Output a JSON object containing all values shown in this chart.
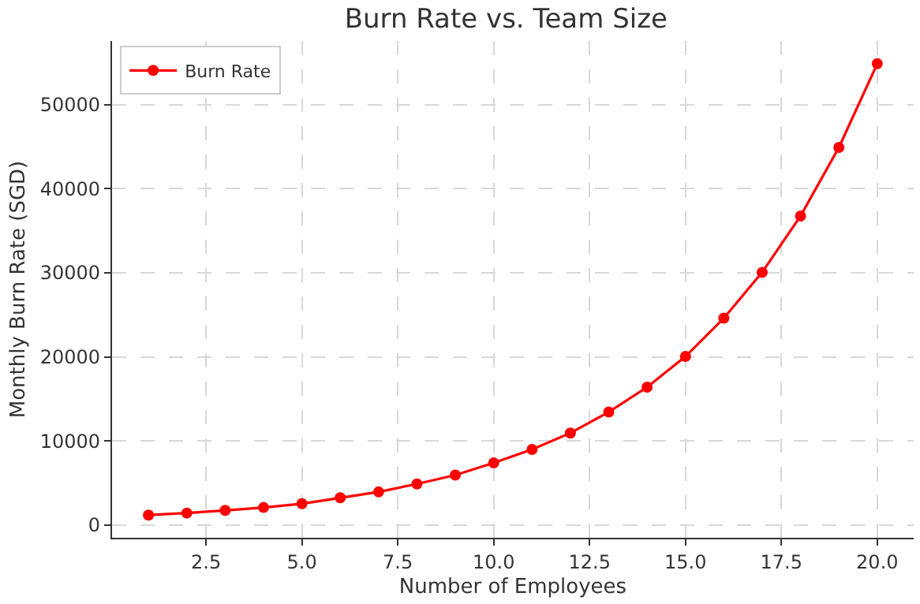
{
  "chart_data": {
    "type": "line",
    "title": "Burn Rate vs. Team Size",
    "xlabel": "Number of Employees",
    "ylabel": "Monthly Burn Rate (SGD)",
    "x": [
      1,
      2,
      3,
      4,
      5,
      6,
      7,
      8,
      9,
      10,
      11,
      12,
      13,
      14,
      15,
      16,
      17,
      18,
      19,
      20
    ],
    "series": [
      {
        "name": "Burn Rate",
        "color": "#ff0000",
        "values": [
          1200,
          1440,
          1750,
          2100,
          2550,
          3250,
          3950,
          4900,
          5950,
          7400,
          9000,
          10950,
          13450,
          16400,
          20050,
          24600,
          30050,
          36750,
          44900,
          54850
        ]
      }
    ],
    "xlim": [
      0.05,
      20.95
    ],
    "xticks": [
      {
        "value": 2.5,
        "label": "2.5"
      },
      {
        "value": 5,
        "label": "5.0"
      },
      {
        "value": 7.5,
        "label": "7.5"
      },
      {
        "value": 10,
        "label": "10.0"
      },
      {
        "value": 12.5,
        "label": "12.5"
      },
      {
        "value": 15,
        "label": "15.0"
      },
      {
        "value": 17.5,
        "label": "17.5"
      },
      {
        "value": 20,
        "label": "20.0"
      }
    ],
    "ylim": [
      -1500,
      57550
    ],
    "yticks": [
      0,
      10000,
      20000,
      30000,
      40000,
      50000
    ],
    "grid": true,
    "legend": "top left",
    "marker": "circle",
    "line_style": "solid"
  }
}
